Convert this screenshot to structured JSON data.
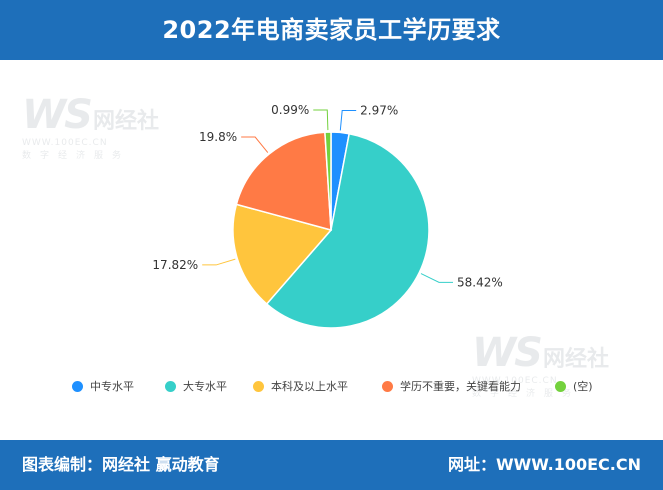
{
  "header": {
    "title": "2022年电商卖家员工学历要求"
  },
  "footer": {
    "left": "图表编制：网经社 赢动教育",
    "right": "网址：WWW.100EC.CN"
  },
  "watermark": {
    "logo": "WS",
    "name": "网经社",
    "url": "WWW.100EC.CN",
    "sub": "数字经济服务"
  },
  "chart_data": {
    "type": "pie",
    "title": "2022年电商卖家员工学历要求",
    "categories": [
      "中专水平",
      "大专水平",
      "本科及以上水平",
      "学历不重要，关键看能力",
      "(空)"
    ],
    "values": [
      2.97,
      58.42,
      17.82,
      19.8,
      0.99
    ],
    "labels": [
      "2.97%",
      "58.42%",
      "17.82%",
      "19.8%",
      "0.99%"
    ],
    "colors": [
      "#1e90ff",
      "#36cfc9",
      "#ffc53d",
      "#ff7a45",
      "#73d13d"
    ],
    "legend": "bottom"
  }
}
